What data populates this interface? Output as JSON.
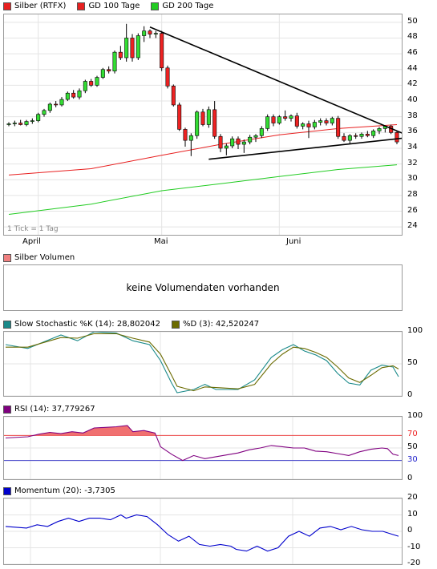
{
  "price_legend": {
    "main": {
      "label": "Silber (RTFX)",
      "color": "#e82020"
    },
    "gd100": {
      "label": "GD 100 Tage",
      "color": "#e82020"
    },
    "gd200": {
      "label": "GD 200 Tage",
      "color": "#22cc22"
    }
  },
  "tick_note": "1 Tick = 1 Tag",
  "month_labels": [
    "April",
    "Mai",
    "Juni"
  ],
  "volume": {
    "label": "Silber Volumen",
    "message": "keine Volumendaten vorhanden",
    "color": "#f08080"
  },
  "stoch_legend": {
    "k": {
      "label": "Slow Stochastic %K (14): 28,802042",
      "color": "#1a8a8a"
    },
    "d": {
      "label": "%D (3): 42,520247",
      "color": "#6b6b00"
    }
  },
  "rsi_legend": {
    "label": "RSI (14): 37,779267",
    "color": "#800080"
  },
  "momentum_legend": {
    "label": "Momentum (20): -3,7305",
    "color": "#0000cc"
  },
  "chart_data": [
    {
      "type": "candlestick",
      "title": "Silber (RTFX)",
      "ylim": [
        23,
        51
      ],
      "yticks": [
        24,
        26,
        28,
        30,
        32,
        34,
        36,
        38,
        40,
        42,
        44,
        46,
        48,
        50
      ],
      "month_starts": {
        "April": 5,
        "Mai": 26,
        "Juni": 46
      },
      "candles": [
        [
          37.0,
          37.3,
          36.8,
          37.1
        ],
        [
          37.1,
          37.5,
          36.8,
          37.2
        ],
        [
          37.2,
          37.6,
          36.9,
          37.0
        ],
        [
          37.0,
          37.6,
          36.8,
          37.4
        ],
        [
          37.4,
          37.8,
          37.1,
          37.5
        ],
        [
          37.5,
          38.5,
          37.3,
          38.3
        ],
        [
          38.3,
          39.0,
          38.0,
          38.8
        ],
        [
          38.8,
          39.8,
          38.5,
          39.6
        ],
        [
          39.6,
          40.0,
          39.2,
          39.5
        ],
        [
          39.5,
          40.5,
          39.3,
          40.2
        ],
        [
          40.2,
          41.2,
          40.0,
          41.0
        ],
        [
          41.0,
          41.4,
          40.3,
          40.5
        ],
        [
          40.5,
          41.6,
          40.2,
          41.3
        ],
        [
          41.3,
          42.7,
          41.0,
          42.5
        ],
        [
          42.5,
          42.8,
          41.8,
          42.0
        ],
        [
          42.0,
          43.2,
          41.8,
          43.0
        ],
        [
          43.0,
          44.2,
          42.8,
          44.0
        ],
        [
          44.0,
          44.4,
          43.5,
          43.8
        ],
        [
          43.8,
          46.4,
          43.5,
          46.2
        ],
        [
          46.2,
          47.0,
          45.2,
          45.5
        ],
        [
          45.5,
          49.8,
          45.0,
          48.0
        ],
        [
          48.0,
          48.5,
          45.0,
          45.5
        ],
        [
          45.5,
          48.6,
          45.2,
          48.3
        ],
        [
          48.3,
          49.5,
          47.5,
          48.9
        ],
        [
          48.9,
          49.1,
          48.0,
          48.5
        ],
        [
          48.5,
          48.9,
          48.0,
          48.6
        ],
        [
          48.6,
          48.9,
          43.8,
          44.2
        ],
        [
          44.2,
          44.5,
          41.6,
          41.9
        ],
        [
          41.9,
          42.1,
          39.3,
          39.5
        ],
        [
          39.5,
          39.8,
          36.2,
          36.4
        ],
        [
          36.4,
          36.6,
          34.2,
          35.0
        ],
        [
          35.0,
          35.9,
          33.0,
          35.6
        ],
        [
          35.6,
          38.8,
          35.2,
          38.6
        ],
        [
          38.6,
          39.0,
          36.8,
          37.0
        ],
        [
          37.0,
          39.3,
          36.6,
          38.9
        ],
        [
          38.9,
          40.0,
          35.2,
          35.5
        ],
        [
          35.5,
          35.8,
          33.5,
          34.0
        ],
        [
          34.0,
          34.6,
          33.1,
          34.3
        ],
        [
          34.3,
          35.5,
          34.0,
          35.2
        ],
        [
          35.2,
          35.5,
          33.9,
          34.5
        ],
        [
          34.5,
          35.1,
          33.4,
          34.8
        ],
        [
          34.8,
          35.7,
          34.5,
          35.4
        ],
        [
          35.4,
          35.8,
          34.8,
          35.6
        ],
        [
          35.6,
          36.8,
          35.3,
          36.5
        ],
        [
          36.5,
          38.3,
          36.2,
          38.0
        ],
        [
          38.0,
          38.3,
          36.8,
          37.2
        ],
        [
          37.2,
          38.2,
          37.0,
          38.0
        ],
        [
          38.0,
          38.8,
          37.5,
          37.8
        ],
        [
          37.8,
          38.3,
          37.4,
          38.1
        ],
        [
          38.1,
          38.5,
          36.5,
          36.8
        ],
        [
          36.8,
          37.3,
          36.4,
          37.1
        ],
        [
          37.1,
          37.5,
          35.3,
          36.7
        ],
        [
          36.7,
          37.6,
          36.4,
          37.3
        ],
        [
          37.3,
          37.8,
          36.9,
          37.5
        ],
        [
          37.5,
          37.8,
          36.9,
          37.2
        ],
        [
          37.2,
          38.0,
          36.9,
          37.8
        ],
        [
          37.8,
          38.1,
          35.2,
          35.5
        ],
        [
          35.5,
          35.9,
          34.8,
          35.0
        ],
        [
          35.0,
          35.8,
          34.6,
          35.6
        ],
        [
          35.6,
          35.9,
          35.2,
          35.5
        ],
        [
          35.5,
          36.0,
          35.2,
          35.8
        ],
        [
          35.8,
          36.2,
          35.4,
          35.6
        ],
        [
          35.6,
          36.4,
          35.3,
          36.2
        ],
        [
          36.2,
          36.7,
          35.8,
          36.5
        ],
        [
          36.5,
          36.9,
          36.0,
          36.8
        ],
        [
          36.8,
          37.0,
          35.8,
          36.0
        ],
        [
          36.0,
          36.2,
          34.5,
          34.8
        ]
      ],
      "gd100": [
        [
          0,
          30.6
        ],
        [
          14,
          31.4
        ],
        [
          26,
          33.1
        ],
        [
          36,
          34.5
        ],
        [
          46,
          35.7
        ],
        [
          56,
          36.5
        ],
        [
          66,
          37.0
        ]
      ],
      "gd200": [
        [
          0,
          25.6
        ],
        [
          14,
          26.9
        ],
        [
          26,
          28.6
        ],
        [
          36,
          29.5
        ],
        [
          46,
          30.4
        ],
        [
          56,
          31.3
        ],
        [
          66,
          31.9
        ]
      ],
      "trendlines": [
        {
          "from": [
            24,
            49.4
          ],
          "to": [
            66,
            36.2
          ]
        },
        {
          "from": [
            34,
            32.6
          ],
          "to": [
            66,
            35.2
          ]
        }
      ]
    },
    {
      "type": "line",
      "title": "Slow Stochastic",
      "ylim": [
        0,
        100
      ],
      "yticks": [
        0,
        50,
        100
      ],
      "series": [
        {
          "name": "%K (14)",
          "color": "#1a8a8a",
          "points": [
            [
              0,
              80
            ],
            [
              4,
              74
            ],
            [
              10,
              95
            ],
            [
              13,
              86
            ],
            [
              16,
              100
            ],
            [
              20,
              98
            ],
            [
              23,
              86
            ],
            [
              26,
              80
            ],
            [
              28,
              55
            ],
            [
              30,
              20
            ],
            [
              31,
              5
            ],
            [
              34,
              10
            ],
            [
              36,
              18
            ],
            [
              38,
              10
            ],
            [
              42,
              10
            ],
            [
              45,
              25
            ],
            [
              48,
              60
            ],
            [
              50,
              72
            ],
            [
              52,
              80
            ],
            [
              54,
              70
            ],
            [
              56,
              64
            ],
            [
              58,
              55
            ],
            [
              60,
              35
            ],
            [
              62,
              20
            ],
            [
              64,
              17
            ],
            [
              66,
              40
            ],
            [
              68,
              48
            ],
            [
              70,
              45
            ],
            [
              71,
              30
            ]
          ]
        },
        {
          "name": "%D (3)",
          "color": "#6b6b00",
          "points": [
            [
              0,
              76
            ],
            [
              4,
              76
            ],
            [
              10,
              91
            ],
            [
              13,
              90
            ],
            [
              16,
              97
            ],
            [
              20,
              97
            ],
            [
              23,
              90
            ],
            [
              26,
              84
            ],
            [
              28,
              65
            ],
            [
              30,
              32
            ],
            [
              31,
              15
            ],
            [
              34,
              8
            ],
            [
              36,
              14
            ],
            [
              38,
              13
            ],
            [
              42,
              11
            ],
            [
              45,
              18
            ],
            [
              48,
              50
            ],
            [
              50,
              65
            ],
            [
              52,
              76
            ],
            [
              54,
              74
            ],
            [
              56,
              68
            ],
            [
              58,
              60
            ],
            [
              60,
              45
            ],
            [
              62,
              28
            ],
            [
              64,
              21
            ],
            [
              66,
              32
            ],
            [
              68,
              44
            ],
            [
              70,
              47
            ],
            [
              71,
              42
            ]
          ]
        }
      ]
    },
    {
      "type": "area",
      "title": "RSI (14)",
      "ylim": [
        0,
        100
      ],
      "yticks": [
        0,
        30,
        50,
        70,
        100
      ],
      "reference_lines": [
        70,
        30
      ],
      "series": [
        {
          "name": "RSI (14)",
          "color": "#800080",
          "points": [
            [
              0,
              66
            ],
            [
              4,
              68
            ],
            [
              6,
              72
            ],
            [
              8,
              75
            ],
            [
              10,
              73
            ],
            [
              12,
              76
            ],
            [
              14,
              74
            ],
            [
              16,
              82
            ],
            [
              18,
              83
            ],
            [
              20,
              84
            ],
            [
              22,
              86
            ],
            [
              23,
              76
            ],
            [
              25,
              78
            ],
            [
              27,
              74
            ],
            [
              28,
              52
            ],
            [
              30,
              40
            ],
            [
              32,
              30
            ],
            [
              34,
              38
            ],
            [
              36,
              33
            ],
            [
              38,
              36
            ],
            [
              40,
              39
            ],
            [
              42,
              42
            ],
            [
              44,
              47
            ],
            [
              46,
              50
            ],
            [
              48,
              54
            ],
            [
              50,
              52
            ],
            [
              52,
              50
            ],
            [
              54,
              50
            ],
            [
              56,
              45
            ],
            [
              58,
              44
            ],
            [
              60,
              41
            ],
            [
              62,
              38
            ],
            [
              64,
              44
            ],
            [
              66,
              48
            ],
            [
              68,
              50
            ],
            [
              69,
              49
            ],
            [
              70,
              40
            ],
            [
              71,
              38
            ]
          ]
        }
      ]
    },
    {
      "type": "line",
      "title": "Momentum (20)",
      "ylim": [
        -20,
        20
      ],
      "yticks": [
        -20,
        -10,
        0,
        10,
        20
      ],
      "series": [
        {
          "name": "Momentum (20)",
          "color": "#0000cc",
          "points": [
            [
              0,
              3
            ],
            [
              4,
              2
            ],
            [
              6,
              4
            ],
            [
              8,
              3
            ],
            [
              10,
              6
            ],
            [
              12,
              8
            ],
            [
              14,
              6
            ],
            [
              16,
              8
            ],
            [
              18,
              8
            ],
            [
              20,
              7
            ],
            [
              22,
              10
            ],
            [
              23,
              8
            ],
            [
              25,
              10
            ],
            [
              27,
              9
            ],
            [
              29,
              4
            ],
            [
              31,
              -2
            ],
            [
              33,
              -6
            ],
            [
              35,
              -3
            ],
            [
              37,
              -8
            ],
            [
              39,
              -9
            ],
            [
              41,
              -8
            ],
            [
              43,
              -9
            ],
            [
              44,
              -11
            ],
            [
              46,
              -12
            ],
            [
              48,
              -9
            ],
            [
              50,
              -12
            ],
            [
              52,
              -10
            ],
            [
              54,
              -3
            ],
            [
              56,
              0
            ],
            [
              58,
              -3
            ],
            [
              60,
              2
            ],
            [
              62,
              3
            ],
            [
              64,
              1
            ],
            [
              66,
              3
            ],
            [
              68,
              1
            ],
            [
              70,
              0
            ],
            [
              72,
              0
            ],
            [
              74,
              -2
            ],
            [
              75,
              -3
            ]
          ]
        }
      ]
    }
  ]
}
